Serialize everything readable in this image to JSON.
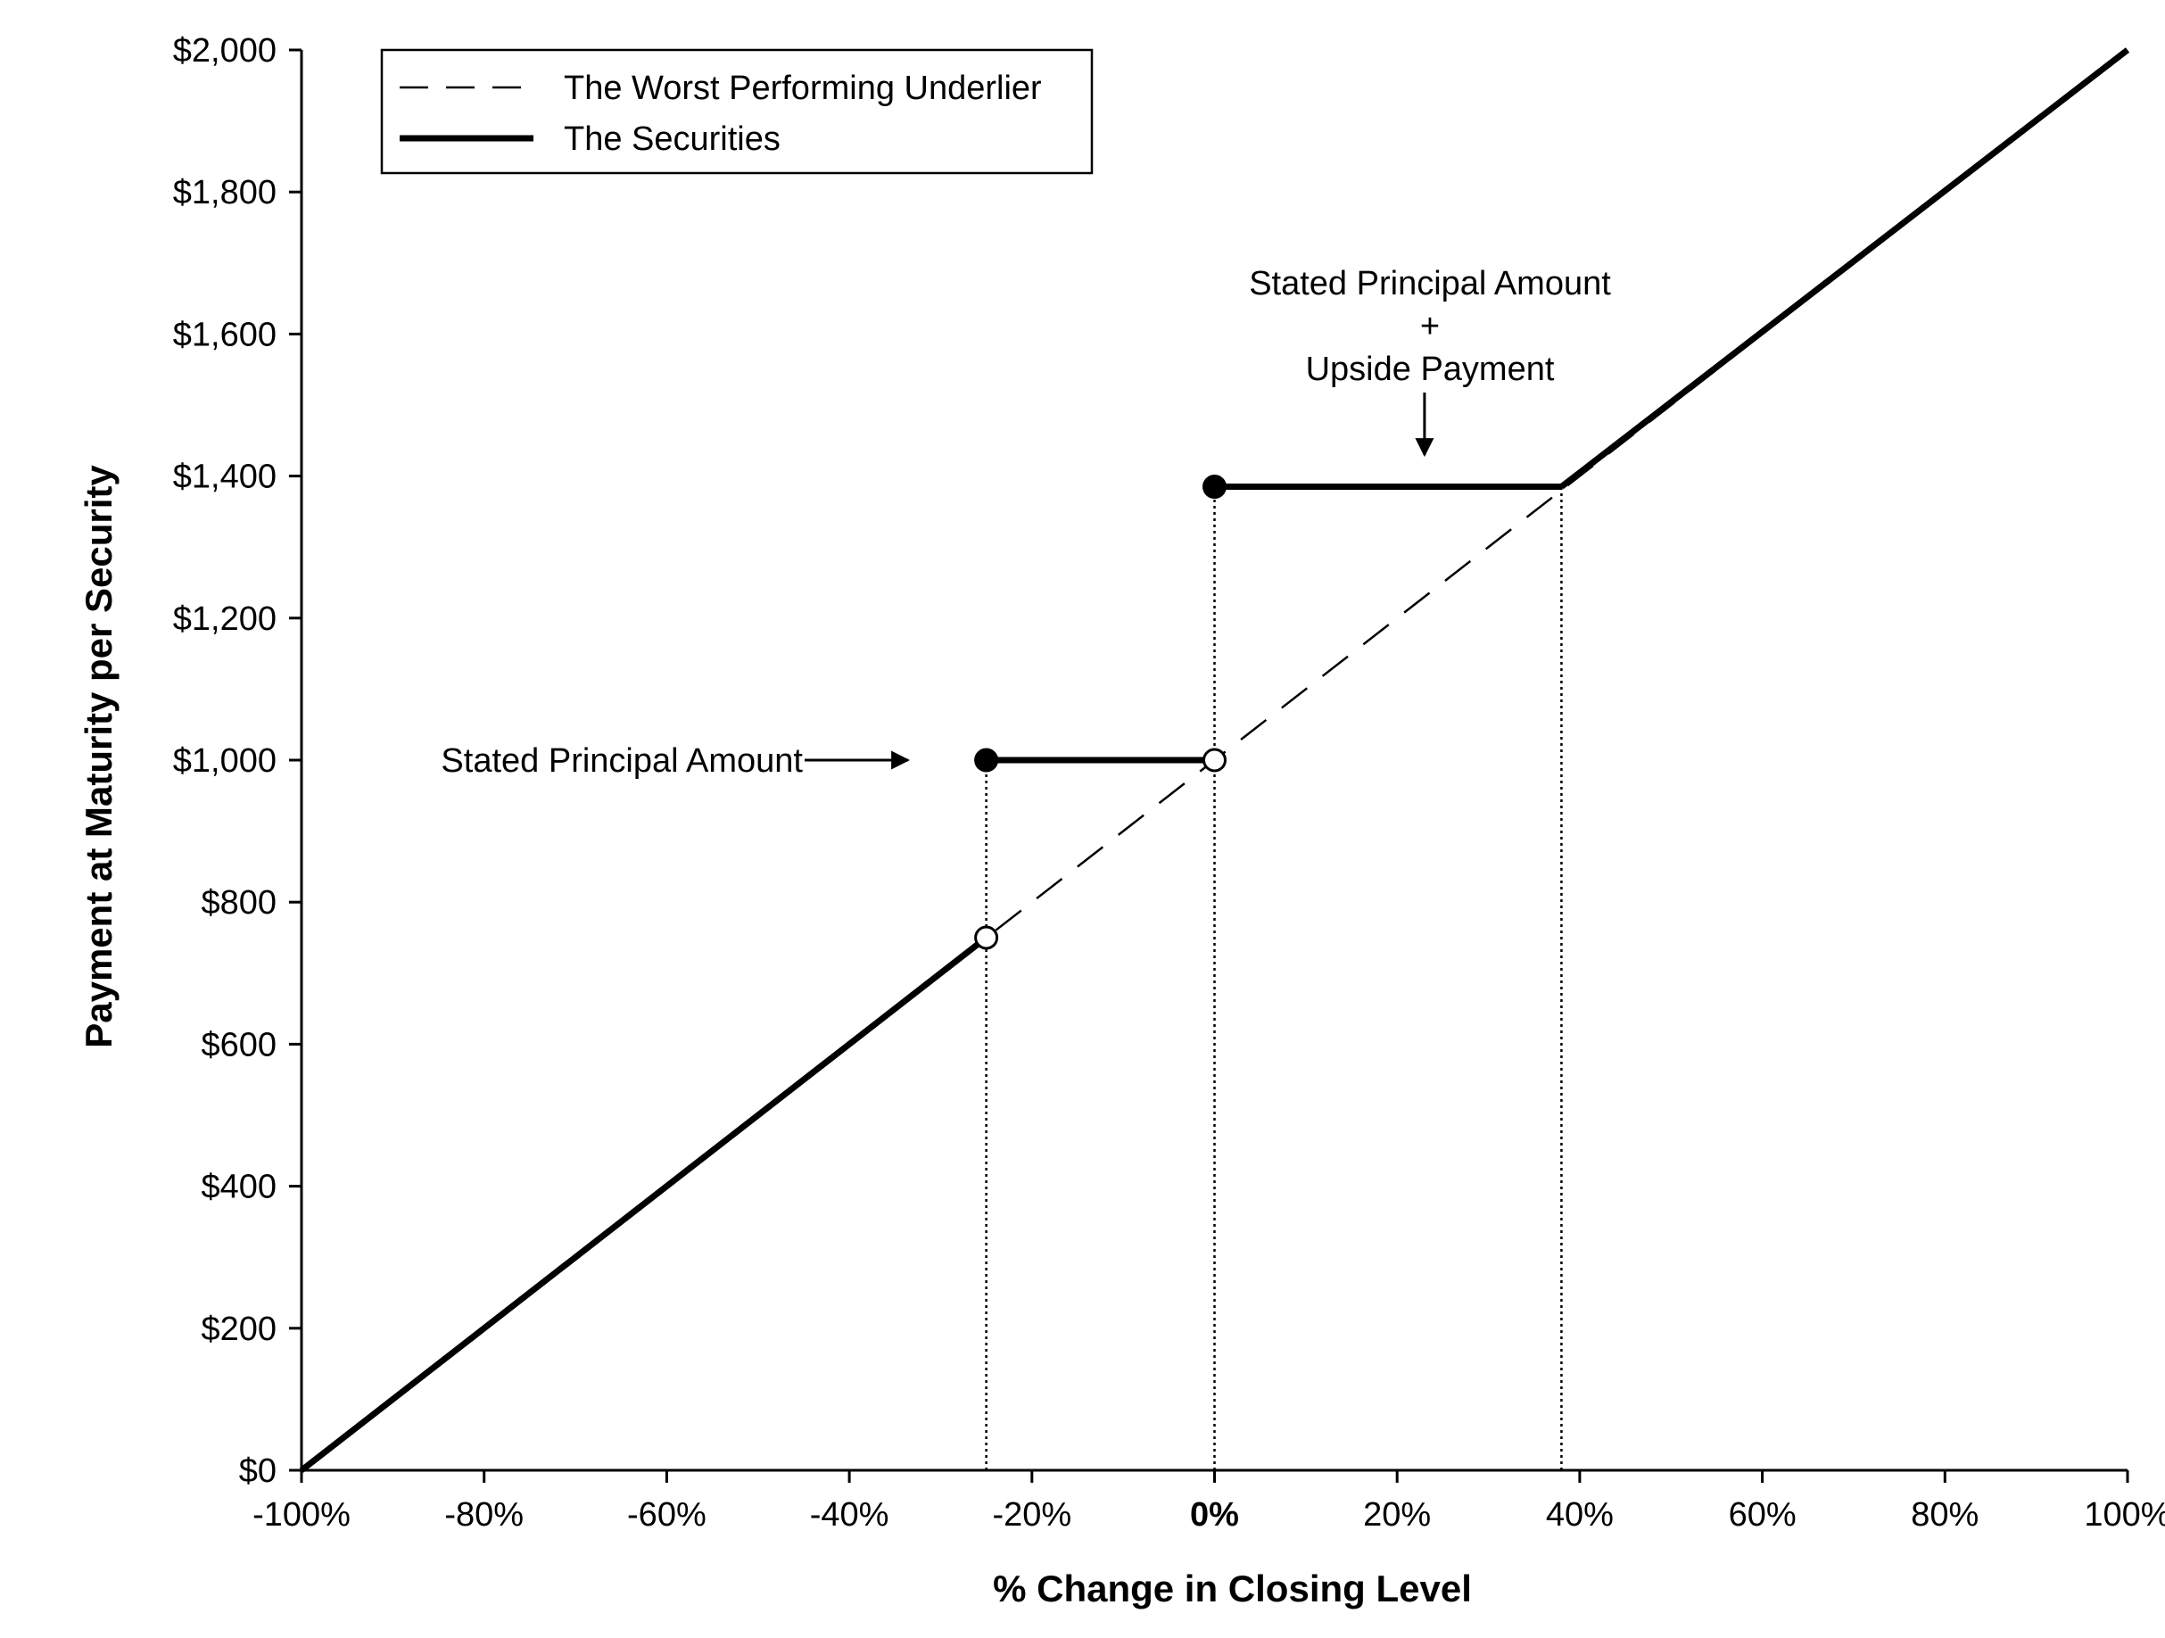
{
  "chart_data": {
    "type": "line",
    "xlabel": "% Change in Closing Level",
    "ylabel": "Payment at Maturity per Security",
    "xlim": [
      -100,
      100
    ],
    "ylim": [
      0,
      2000
    ],
    "x_ticks": [
      -100,
      -80,
      -60,
      -40,
      -20,
      0,
      20,
      40,
      60,
      80,
      100
    ],
    "x_tick_labels": [
      "-100%",
      "-80%",
      "-60%",
      "-40%",
      "-20%",
      "0%",
      "20%",
      "40%",
      "60%",
      "80%",
      "100%"
    ],
    "y_ticks": [
      0,
      200,
      400,
      600,
      800,
      1000,
      1200,
      1400,
      1600,
      1800,
      2000
    ],
    "y_tick_labels": [
      "$0",
      "$200",
      "$400",
      "$600",
      "$800",
      "$1,000",
      "$1,200",
      "$1,400",
      "$1,600",
      "$1,800",
      "$2,000"
    ],
    "grid": false,
    "legend_position": "top-left",
    "series": [
      {
        "name": "The Worst Performing Underlier",
        "style": "dashed",
        "points": [
          [
            -100,
            0
          ],
          [
            100,
            2000
          ]
        ]
      },
      {
        "name": "The Securities",
        "style": "solid-thick",
        "segments": [
          [
            [
              -100,
              0
            ],
            [
              -25,
              750
            ]
          ],
          [
            [
              -25,
              1000
            ],
            [
              0,
              1000
            ]
          ],
          [
            [
              0,
              1385
            ],
            [
              38,
              1385
            ]
          ],
          [
            [
              38,
              1385
            ],
            [
              100,
              2000
            ]
          ]
        ]
      }
    ],
    "markers": [
      {
        "x": -25,
        "y": 1000,
        "fill": "filled"
      },
      {
        "x": -25,
        "y": 750,
        "fill": "open"
      },
      {
        "x": 0,
        "y": 1000,
        "fill": "open"
      },
      {
        "x": 0,
        "y": 1385,
        "fill": "filled"
      }
    ],
    "reference_lines_x": [
      {
        "x": -25,
        "y": 1000
      },
      {
        "x": 0,
        "y": 1385
      },
      {
        "x": 38,
        "y": 1385
      }
    ],
    "annotations": [
      {
        "id": "principal",
        "lines": [
          "Stated Principal Amount"
        ],
        "arrow": "right",
        "target": {
          "x": -25,
          "y": 1000
        }
      },
      {
        "id": "upside",
        "lines": [
          "Stated Principal Amount",
          "+",
          "Upside Payment"
        ],
        "arrow": "down",
        "target": {
          "x": 23,
          "y": 1385
        }
      }
    ]
  }
}
